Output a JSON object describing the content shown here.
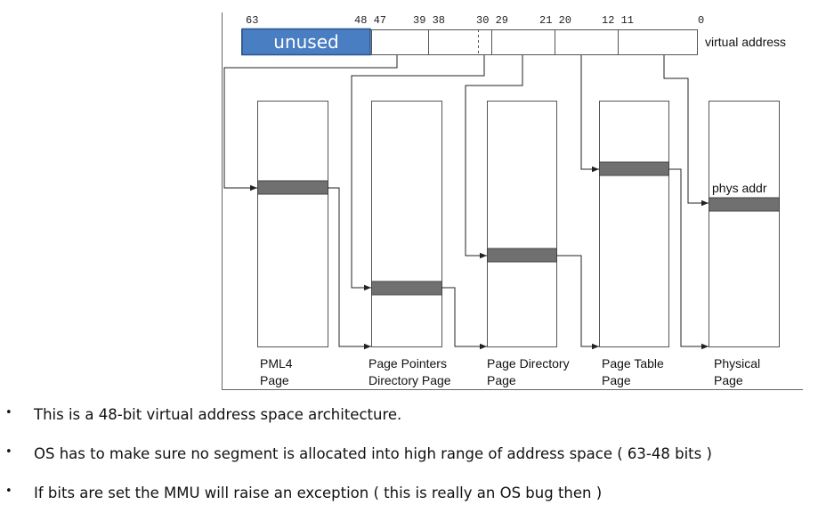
{
  "diagram": {
    "bit_labels": [
      "63",
      "48 47",
      "39 38",
      "30 29",
      "21 20",
      "12 11",
      "0"
    ],
    "unused_label": "unused",
    "virtual_address_label": "virtual address",
    "phys_addr_label": "phys addr",
    "tables": [
      {
        "line1": "PML4",
        "line2": "Page"
      },
      {
        "line1": "Page Pointers",
        "line2": "Directory Page"
      },
      {
        "line1": "Page Directory",
        "line2": "Page"
      },
      {
        "line1": "Page Table",
        "line2": "Page"
      },
      {
        "line1": "Physical",
        "line2": "Page"
      }
    ],
    "colors": {
      "unused_fill": "#4a7ec2",
      "entry_fill": "#707070"
    }
  },
  "bullets": [
    "This is a 48-bit virtual address space architecture.",
    "OS has to make sure no segment is allocated into high range of address space ( 63-48 bits )",
    "If bits are set the MMU will raise an exception ( this is really an OS bug then )"
  ]
}
